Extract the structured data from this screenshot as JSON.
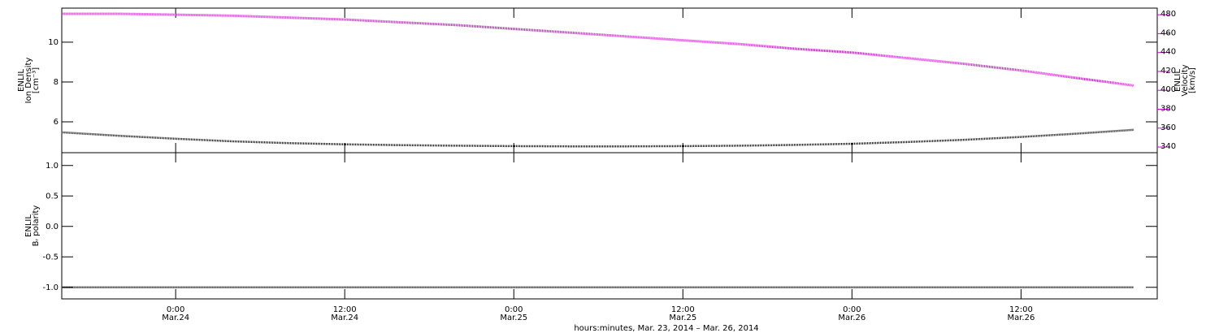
{
  "chart_data": [
    {
      "type": "line",
      "ylabel": [
        "ENLIL",
        "Ion Density",
        "[cm⁻³]"
      ],
      "y2label": [
        "ENLIL",
        "Velocity",
        "[km/s]"
      ],
      "x": [
        "2014-03-23T16:00",
        "2014-03-23T20:00",
        "2014-03-24T00:00",
        "2014-03-24T04:00",
        "2014-03-24T08:00",
        "2014-03-24T12:00",
        "2014-03-24T16:00",
        "2014-03-24T20:00",
        "2014-03-25T00:00",
        "2014-03-25T04:00",
        "2014-03-25T08:00",
        "2014-03-25T12:00",
        "2014-03-25T16:00",
        "2014-03-25T20:00",
        "2014-03-26T00:00",
        "2014-03-26T04:00",
        "2014-03-26T08:00",
        "2014-03-26T12:00",
        "2014-03-26T16:00",
        "2014-03-26T20:00"
      ],
      "xlim": [
        "2014-03-23T15:55",
        "2014-03-26T21:40"
      ],
      "xticks": [
        "2014-03-24T00:00",
        "2014-03-24T12:00",
        "2014-03-25T00:00",
        "2014-03-25T12:00",
        "2014-03-26T00:00",
        "2014-03-26T12:00"
      ],
      "series": [
        {
          "color": "#000000",
          "values": [
            5.47,
            5.3,
            5.15,
            5.02,
            4.93,
            4.87,
            4.83,
            4.8,
            4.78,
            4.77,
            4.77,
            4.78,
            4.8,
            4.84,
            4.9,
            4.99,
            5.1,
            5.24,
            5.41,
            5.6
          ]
        },
        {
          "color": "#e000e0",
          "axis": "y2",
          "values": [
            481,
            481,
            480,
            479,
            477,
            475,
            472,
            469,
            465,
            461,
            457,
            453,
            449,
            444,
            440,
            434,
            428,
            421,
            413,
            405
          ]
        }
      ],
      "ylim": [
        4.45,
        11.71
      ],
      "yticks": [
        6,
        8,
        10
      ],
      "y2lim": [
        334,
        487
      ],
      "y2ticks": [
        340,
        360,
        380,
        400,
        420,
        440,
        460,
        480
      ],
      "y2color": "#e000e0"
    },
    {
      "type": "line",
      "ylabel": [
        "ENLIL",
        "Bᵣ polarity"
      ],
      "xlabel": "hours:minutes, Mar. 23, 2014 – Mar. 26, 2014",
      "x": [
        "2014-03-23T16:00",
        "2014-03-23T20:00",
        "2014-03-24T00:00",
        "2014-03-24T04:00",
        "2014-03-24T08:00",
        "2014-03-24T12:00",
        "2014-03-24T16:00",
        "2014-03-24T20:00",
        "2014-03-25T00:00",
        "2014-03-25T04:00",
        "2014-03-25T08:00",
        "2014-03-25T12:00",
        "2014-03-25T16:00",
        "2014-03-25T20:00",
        "2014-03-26T00:00",
        "2014-03-26T04:00",
        "2014-03-26T08:00",
        "2014-03-26T12:00",
        "2014-03-26T16:00",
        "2014-03-26T20:00"
      ],
      "xlim": [
        "2014-03-23T15:55",
        "2014-03-26T21:40"
      ],
      "xticks": [
        {
          "value": "2014-03-24T00:00",
          "label": [
            "0:00",
            "Mar.24"
          ]
        },
        {
          "value": "2014-03-24T12:00",
          "label": [
            "12:00",
            "Mar.24"
          ]
        },
        {
          "value": "2014-03-25T00:00",
          "label": [
            "0:00",
            "Mar.25"
          ]
        },
        {
          "value": "2014-03-25T12:00",
          "label": [
            "12:00",
            "Mar.25"
          ]
        },
        {
          "value": "2014-03-26T00:00",
          "label": [
            "0:00",
            "Mar.26"
          ]
        },
        {
          "value": "2014-03-26T12:00",
          "label": [
            "12:00",
            "Mar.26"
          ]
        }
      ],
      "series": [
        {
          "color": "#000000",
          "values": [
            -1,
            -1,
            -1,
            -1,
            -1,
            -1,
            -1,
            -1,
            -1,
            -1,
            -1,
            -1,
            -1,
            -1,
            -1,
            -1,
            -1,
            -1,
            -1,
            -1
          ]
        }
      ],
      "ylim": [
        -1.19,
        1.21
      ],
      "yticks": [
        {
          "value": -1,
          "label": "-1.0"
        },
        -0.5,
        {
          "value": 0,
          "label": "0.0"
        },
        0.5,
        {
          "value": 1,
          "label": "1.0"
        }
      ]
    }
  ]
}
